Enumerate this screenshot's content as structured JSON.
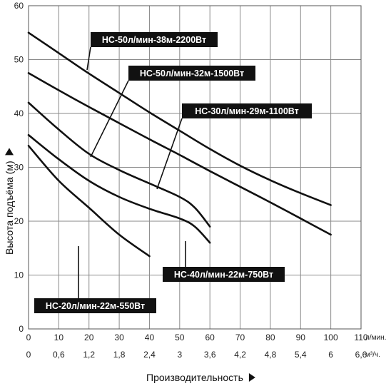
{
  "chart_data": {
    "type": "line",
    "xlabel": "Производительность",
    "ylabel": "Высота подъёма (м)",
    "x_unit_top": "л/мин.",
    "x_unit_bottom": "м³/ч.",
    "xlim": [
      0,
      110
    ],
    "ylim": [
      0,
      60
    ],
    "x_ticks": [
      0,
      10,
      20,
      30,
      40,
      50,
      60,
      70,
      80,
      90,
      100,
      110
    ],
    "x_ticks_secondary": [
      "0",
      "0,6",
      "1,2",
      "1,8",
      "2,4",
      "3",
      "3,6",
      "4,2",
      "4,8",
      "5,4",
      "6",
      "6,6"
    ],
    "y_ticks": [
      0,
      10,
      20,
      30,
      40,
      50,
      60
    ],
    "grid": true,
    "series": [
      {
        "name": "HC-50л/мин-38м-2200Вт",
        "x": [
          0,
          10,
          20,
          30,
          40,
          50,
          60,
          70,
          80,
          90,
          100
        ],
        "y": [
          55,
          51.2,
          47.4,
          43.8,
          40.2,
          36.8,
          33.4,
          30.3,
          27.6,
          25.2,
          23
        ]
      },
      {
        "name": "HC-50л/мин-32м-1500Вт",
        "x": [
          0,
          10,
          20,
          30,
          40,
          50,
          60,
          70,
          80,
          90,
          100
        ],
        "y": [
          47.5,
          44.3,
          41.2,
          38.2,
          35.2,
          32.3,
          29.3,
          26.4,
          23.5,
          20.5,
          17.5
        ]
      },
      {
        "name": "HC-30л/мин-29м-1100Вт",
        "x": [
          0,
          10,
          20,
          30,
          40,
          50,
          55,
          60
        ],
        "y": [
          42,
          37,
          32.5,
          29.5,
          27,
          24.5,
          22.5,
          19
        ]
      },
      {
        "name": "HC-40л/мин-22м-750Вт",
        "x": [
          0,
          10,
          20,
          30,
          40,
          50,
          55,
          60
        ],
        "y": [
          36,
          31.5,
          27.5,
          24.5,
          22.3,
          20.5,
          19,
          16
        ]
      },
      {
        "name": "HC-20л/мин-22м-550Вт",
        "x": [
          0,
          10,
          20,
          30,
          40
        ],
        "y": [
          34,
          27.5,
          22.5,
          17.5,
          13.5
        ]
      }
    ]
  }
}
